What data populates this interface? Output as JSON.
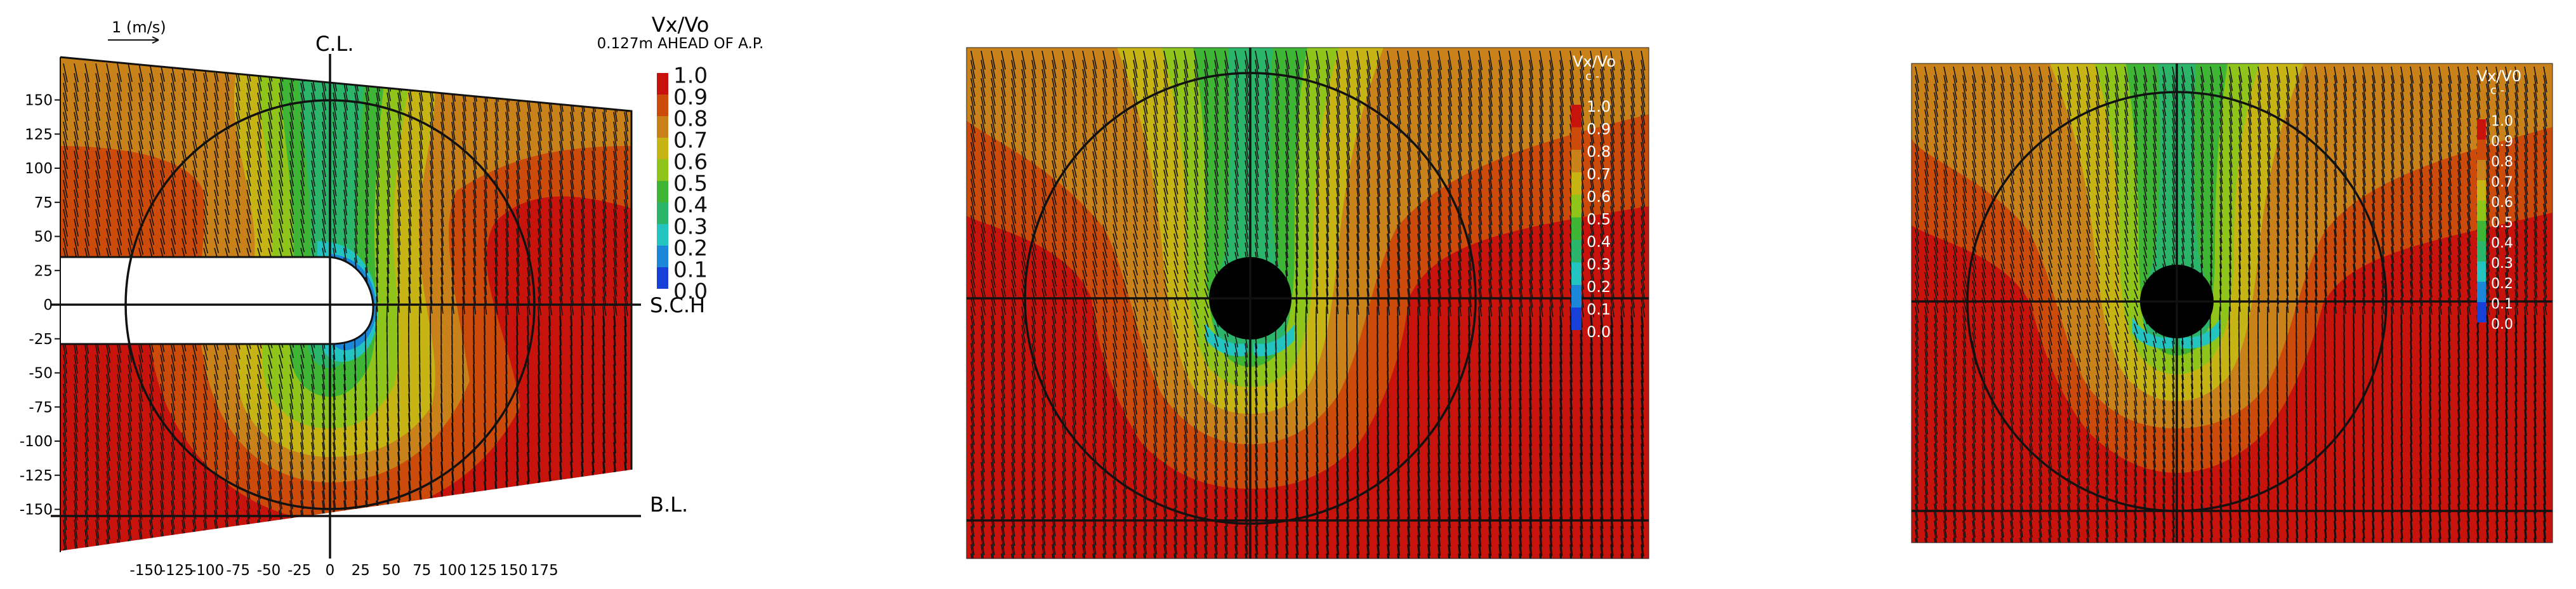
{
  "panels": [
    {
      "id": "measured",
      "x_axis": {
        "ticks": [
          -150,
          -125,
          -100,
          -75,
          -50,
          -25,
          0,
          25,
          50,
          75,
          100,
          125,
          150,
          175
        ],
        "range": [
          -165,
          190
        ]
      },
      "y_axis": {
        "ticks": [
          150,
          125,
          100,
          75,
          50,
          25,
          0,
          -25,
          -50,
          -75,
          -100,
          -125,
          -150
        ],
        "range": [
          -155,
          155
        ]
      },
      "scale_vector_label": "1 (m/s)",
      "centerline_label": "C.L.",
      "shaft_label": "S.C.H",
      "baseline_label": "B.L.",
      "legend_title": "Vx/Vo",
      "legend_subtitle": "0.127m AHEAD OF A.P.",
      "legend_levels": [
        "1.0",
        "0.9",
        "0.8",
        "0.7",
        "0.6",
        "0.5",
        "0.4",
        "0.3",
        "0.2",
        "0.1",
        "0.0"
      ]
    },
    {
      "id": "computed-1",
      "legend_title": "Vx/Vo",
      "legend_subtitle": "c -",
      "legend_levels": [
        "1.0",
        "0.9",
        "0.8",
        "0.7",
        "0.6",
        "0.5",
        "0.4",
        "0.3",
        "0.2",
        "0.1",
        "0.0"
      ]
    },
    {
      "id": "computed-2",
      "legend_title": "Vx/V0",
      "legend_subtitle": "c -",
      "legend_levels": [
        "1.0",
        "0.9",
        "0.8",
        "0.7",
        "0.6",
        "0.5",
        "0.4",
        "0.3",
        "0.2",
        "0.1",
        "0.0"
      ]
    }
  ],
  "colors": {
    "1.0": "#c8120c",
    "0.9": "#cc4a0a",
    "0.8": "#c9821a",
    "0.7": "#c6b415",
    "0.6": "#8fc41a",
    "0.5": "#3fb535",
    "0.4": "#2bb56a",
    "0.3": "#23c4c0",
    "0.2": "#1b87d8",
    "0.1": "#1640d8",
    "0.0": "#0000c8"
  }
}
